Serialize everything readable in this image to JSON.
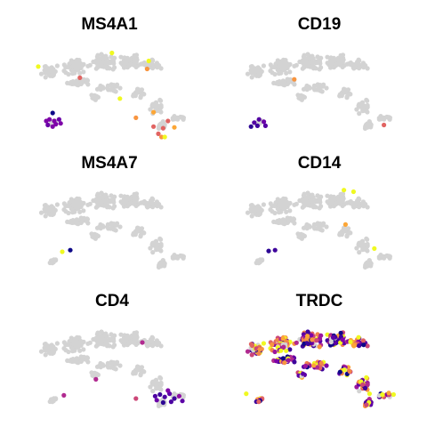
{
  "figure": {
    "panels": [
      {
        "title": "MS4A1"
      },
      {
        "title": "CD19"
      },
      {
        "title": "MS4A7"
      },
      {
        "title": "CD14"
      },
      {
        "title": "CD4"
      },
      {
        "title": "TRDC"
      }
    ]
  },
  "chart_data": [
    {
      "type": "scatter",
      "title": "MS4A1",
      "background_color": "#d3d3d3",
      "highlight": [
        {
          "x": 0.05,
          "y": 0.22,
          "color": "#f0f921"
        },
        {
          "x": 0.51,
          "y": 0.05,
          "color": "#f0f921"
        },
        {
          "x": 0.74,
          "y": 0.15,
          "color": "#f0f921"
        },
        {
          "x": 0.73,
          "y": 0.25,
          "color": "#f89540"
        },
        {
          "x": 0.31,
          "y": 0.36,
          "color": "#e16462"
        },
        {
          "x": 0.56,
          "y": 0.62,
          "color": "#f0f921"
        },
        {
          "x": 0.66,
          "y": 0.86,
          "color": "#f89540"
        },
        {
          "x": 0.77,
          "y": 0.79,
          "color": "#fca636"
        },
        {
          "x": 0.77,
          "y": 0.97,
          "color": "#e16462"
        },
        {
          "x": 0.83,
          "y": 0.99,
          "color": "#e16462"
        },
        {
          "x": 0.8,
          "y": 1.06,
          "color": "#e16462"
        },
        {
          "x": 0.82,
          "y": 1.15,
          "color": "#f89540"
        },
        {
          "x": 0.84,
          "y": 1.21,
          "color": "#f0f921"
        },
        {
          "x": 0.9,
          "y": 0.98,
          "color": "#fca636"
        },
        {
          "x": 0.86,
          "y": 0.9,
          "color": "#e16462"
        },
        {
          "x": 0.14,
          "y": 0.8,
          "color": "#0d0887"
        },
        {
          "x": 0.12,
          "y": 0.88,
          "color": "#7e03a8"
        },
        {
          "x": 0.15,
          "y": 0.9,
          "color": "#7e03a8"
        },
        {
          "x": 0.18,
          "y": 0.88,
          "color": "#6a00a8"
        },
        {
          "x": 0.1,
          "y": 0.9,
          "color": "#7e03a8"
        },
        {
          "x": 0.16,
          "y": 0.94,
          "color": "#7e03a8"
        },
        {
          "x": 0.11,
          "y": 0.95,
          "color": "#6a00a8"
        },
        {
          "x": 0.19,
          "y": 0.93,
          "color": "#7e03a8"
        },
        {
          "x": 0.14,
          "y": 0.97,
          "color": "#7e03a8"
        }
      ]
    },
    {
      "type": "scatter",
      "title": "CD19",
      "background_color": "#d3d3d3",
      "highlight": [
        {
          "x": 0.36,
          "y": 0.38,
          "color": "#f89540"
        },
        {
          "x": 0.92,
          "y": 0.95,
          "color": "#e16462"
        },
        {
          "x": 0.11,
          "y": 0.92,
          "color": "#5302a3"
        },
        {
          "x": 0.14,
          "y": 0.88,
          "color": "#5302a3"
        },
        {
          "x": 0.17,
          "y": 0.91,
          "color": "#6a00a8"
        },
        {
          "x": 0.13,
          "y": 0.96,
          "color": "#3e049c"
        },
        {
          "x": 0.18,
          "y": 0.96,
          "color": "#5302a3"
        },
        {
          "x": 0.09,
          "y": 0.97,
          "color": "#2c0594"
        }
      ]
    },
    {
      "type": "scatter",
      "title": "MS4A7",
      "background_color": "#d3d3d3",
      "highlight": [
        {
          "x": 0.2,
          "y": 0.8,
          "color": "#f0f921"
        },
        {
          "x": 0.25,
          "y": 0.78,
          "color": "#0d0887"
        }
      ]
    },
    {
      "type": "scatter",
      "title": "CD14",
      "background_color": "#d3d3d3",
      "highlight": [
        {
          "x": 0.67,
          "y": 0.03,
          "color": "#f0f921"
        },
        {
          "x": 0.73,
          "y": 0.05,
          "color": "#f0f921"
        },
        {
          "x": 0.68,
          "y": 0.46,
          "color": "#fca636"
        },
        {
          "x": 0.86,
          "y": 0.76,
          "color": "#f0f921"
        },
        {
          "x": 0.2,
          "y": 0.79,
          "color": "#2c0594"
        },
        {
          "x": 0.24,
          "y": 0.78,
          "color": "#3e049c"
        }
      ]
    },
    {
      "type": "scatter",
      "title": "CD4",
      "background_color": "#d3d3d3",
      "highlight": [
        {
          "x": 0.7,
          "y": 0.2,
          "color": "#b12a90"
        },
        {
          "x": 0.41,
          "y": 0.66,
          "color": "#b12a90"
        },
        {
          "x": 0.21,
          "y": 0.86,
          "color": "#b12a90"
        },
        {
          "x": 0.66,
          "y": 0.9,
          "color": "#cc4778"
        },
        {
          "x": 0.78,
          "y": 0.87,
          "color": "#4c02a1"
        },
        {
          "x": 0.81,
          "y": 0.85,
          "color": "#3e049c"
        },
        {
          "x": 0.84,
          "y": 0.88,
          "color": "#4c02a1"
        },
        {
          "x": 0.87,
          "y": 0.84,
          "color": "#5c01a6"
        },
        {
          "x": 0.9,
          "y": 0.9,
          "color": "#3e049c"
        },
        {
          "x": 0.79,
          "y": 0.92,
          "color": "#6a00a8"
        },
        {
          "x": 0.83,
          "y": 0.95,
          "color": "#2c0594"
        },
        {
          "x": 0.88,
          "y": 0.94,
          "color": "#4c02a1"
        },
        {
          "x": 0.93,
          "y": 0.87,
          "color": "#8f0da4"
        },
        {
          "x": 0.95,
          "y": 0.93,
          "color": "#5c01a6"
        },
        {
          "x": 0.86,
          "y": 0.8,
          "color": "#7e03a8"
        }
      ]
    },
    {
      "type": "scatter",
      "title": "TRDC",
      "background_color": "#d3d3d3",
      "dense_colored": true,
      "highlight": [
        {
          "x": 0.06,
          "y": 0.84,
          "color": "#f0f921"
        },
        {
          "x": 0.83,
          "y": 0.84,
          "color": "#f0f921"
        },
        {
          "x": 0.91,
          "y": 0.85,
          "color": "#f0f921"
        },
        {
          "x": 0.95,
          "y": 0.83,
          "color": "#fca636"
        },
        {
          "x": 0.98,
          "y": 0.85,
          "color": "#f0f921"
        }
      ]
    }
  ]
}
